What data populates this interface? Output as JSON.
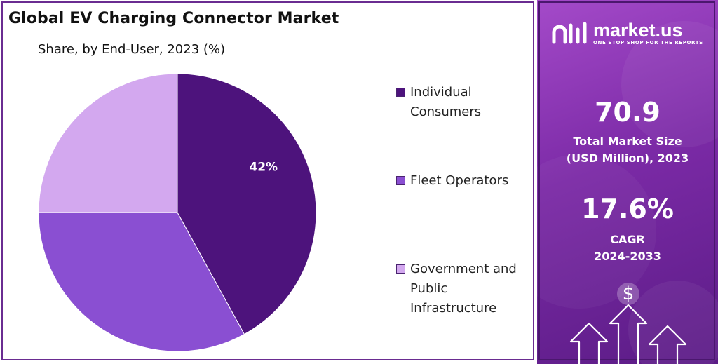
{
  "chart_data": {
    "type": "pie",
    "title": "Global EV Charging Connector Market",
    "subtitle": "Share, by End-User, 2023 (%)",
    "categories": [
      "Individual Consumers",
      "Fleet Operators",
      "Government and Public Infrastructure"
    ],
    "values": [
      42,
      33,
      25
    ],
    "data_labels": [
      "42%",
      "",
      ""
    ],
    "colors": [
      "#4d137c",
      "#8a4fd2",
      "#d3a8ef"
    ],
    "legend_placement": "right",
    "legend": [
      {
        "lines": [
          "Individual",
          "Consumers"
        ],
        "color": "#4d137c"
      },
      {
        "lines": [
          "Fleet Operators"
        ],
        "color": "#8a4fd2"
      },
      {
        "lines": [
          "Government and",
          "Public",
          "Infrastructure"
        ],
        "color": "#d3a8ef"
      }
    ]
  },
  "sidebar": {
    "brand": "market.us",
    "tagline": "ONE STOP SHOP FOR THE REPORTS",
    "market_size_value": "70.9",
    "market_size_label_1": "Total Market Size",
    "market_size_label_2": "(USD Million), 2023",
    "cagr_value": "17.6%",
    "cagr_label": "CAGR",
    "cagr_period": "2024-2033",
    "icon": "growth-arrows-dollar-icon"
  }
}
